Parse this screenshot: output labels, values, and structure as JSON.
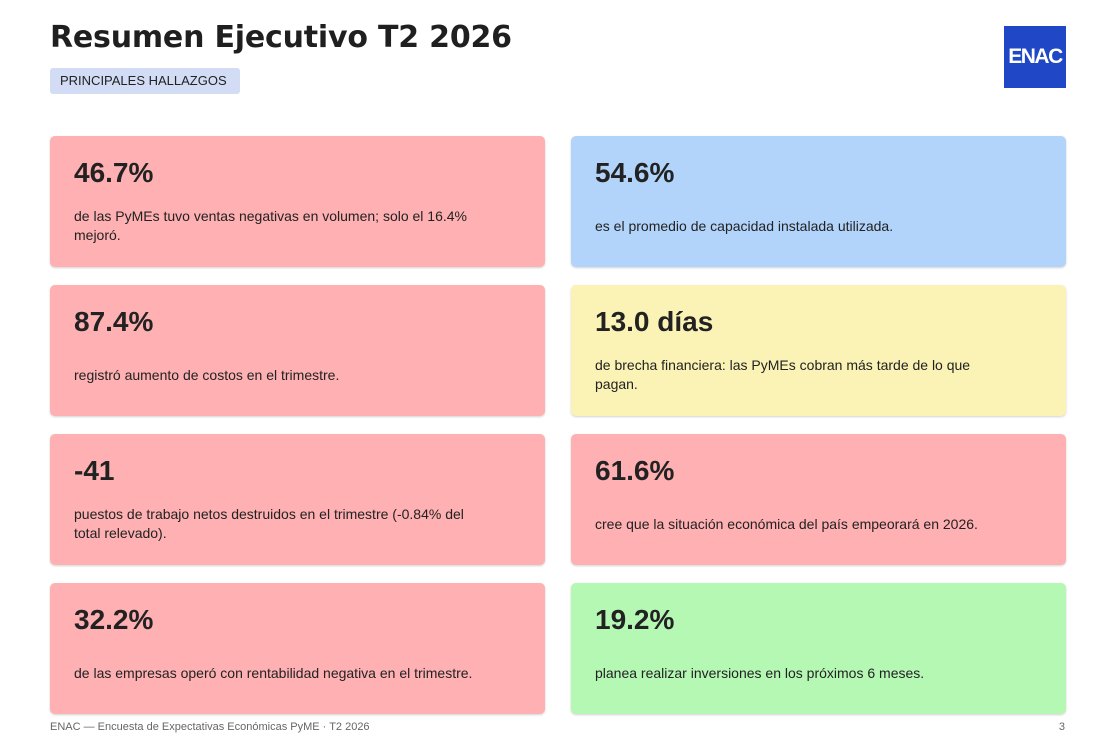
{
  "header": {
    "title": "Resumen Ejecutivo T2 2026",
    "tag": "PRINCIPALES HALLAZGOS",
    "logo_text": "ENAC"
  },
  "cards": [
    {
      "value": "46.7%",
      "text": "de las PyMEs tuvo ventas negativas en volumen; solo el 16.4% mejoró.",
      "color": "#feb0b2"
    },
    {
      "value": "54.6%",
      "text": "es el promedio de capacidad instalada utilizada.",
      "color": "#b2d4fb"
    },
    {
      "value": "87.4%",
      "text": "registró aumento de costos en el trimestre.",
      "color": "#feb0b2"
    },
    {
      "value": "13.0 días",
      "text": "de brecha financiera: las PyMEs cobran más tarde de lo que pagan.",
      "color": "#fbf2b6"
    },
    {
      "value": "-41",
      "text": "puestos de trabajo netos destruidos en el trimestre (-0.84% del total relevado).",
      "color": "#feb0b2"
    },
    {
      "value": "61.6%",
      "text": "cree que la situación económica del país empeorará en 2026.",
      "color": "#feb0b2"
    },
    {
      "value": "32.2%",
      "text": "de las empresas operó con rentabilidad negativa en el trimestre.",
      "color": "#feb0b2"
    },
    {
      "value": "19.2%",
      "text": "planea realizar inversiones en los próximos 6 meses.",
      "color": "#b4f8b4"
    }
  ],
  "footer": {
    "source": "ENAC — Encuesta de Expectativas Económicas PyME · T2 2026",
    "page_number": "3"
  },
  "colors": {
    "logo_background": "#1f47c6",
    "tag_background": "#d2dcf5"
  }
}
